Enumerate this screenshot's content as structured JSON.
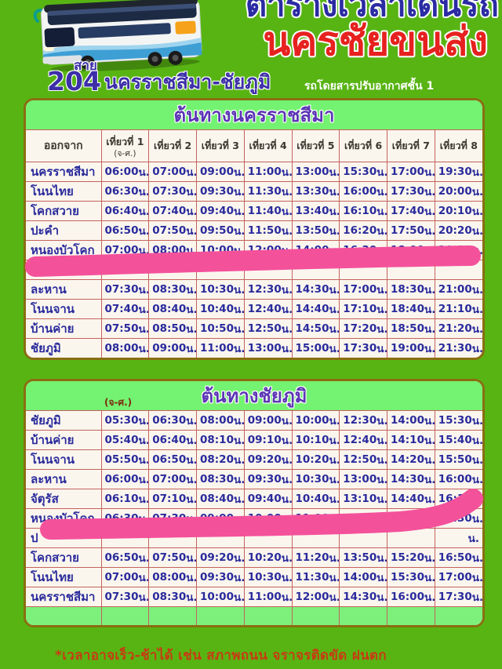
{
  "header": {
    "title_line1": "ตารางเวลาเดินรถ",
    "title_line2": "นครชัยขนส่ง",
    "route_label": "สาย",
    "route_number": "204",
    "route_name": "นครราชสีมา-ชัยภูมิ",
    "bus_note": "รถโดยสารปรับอากาศชั้น 1"
  },
  "icons": {
    "bus": "double-decker-bus"
  },
  "tables": [
    {
      "title": "ต้นทางนครราชสีมา",
      "weekday_note": "(จ-ศ.)",
      "columns": [
        "ออกจาก",
        "เที่ยวที่ 1",
        "เที่ยวที่ 2",
        "เที่ยวที่ 3",
        "เที่ยวที่ 4",
        "เที่ยวที่ 5",
        "เที่ยวที่ 6",
        "เที่ยวที่ 7",
        "เที่ยวที่ 8"
      ],
      "rows": [
        {
          "station": "นครราชสีมา",
          "times": [
            "06:00 น.",
            "07:00 น.",
            "09:00 น.",
            "11:00 น.",
            "13:00 น.",
            "15:30 น.",
            "17:00 น.",
            "19:30 น."
          ]
        },
        {
          "station": "โนนไทย",
          "times": [
            "06:30 น.",
            "07:30 น.",
            "09:30 น.",
            "11:30 น.",
            "13:30 น.",
            "16:00 น.",
            "17:30 น.",
            "20:00 น."
          ]
        },
        {
          "station": "โคกสวาย",
          "times": [
            "06:40 น.",
            "07:40 น.",
            "09:40 น.",
            "11:40 น.",
            "13:40 น.",
            "16:10 น.",
            "17:40 น.",
            "20:10 น."
          ]
        },
        {
          "station": "ปะคำ",
          "times": [
            "06:50 น.",
            "07:50 น.",
            "09:50 น.",
            "11:50 น.",
            "13:50 น.",
            "16:20 น.",
            "17:50 น.",
            "20:20 น."
          ]
        },
        {
          "station": "หนองบัวโคก",
          "times": [
            "07:00 น.",
            "08:00 น.",
            "10:00 น.",
            "12:00 น.",
            "14:00 น.",
            "16:30 น.",
            "18:00 น.",
            "20:30 น."
          ]
        },
        {
          "station": "",
          "times": [
            "",
            "",
            "",
            "",
            "",
            "",
            "",
            ""
          ],
          "highlighted": true
        },
        {
          "station": "ละหาน",
          "times": [
            "07:30 น.",
            "08:30 น.",
            "10:30 น.",
            "12:30 น.",
            "14:30 น.",
            "17:00 น.",
            "18:30 น.",
            "21:00 น."
          ]
        },
        {
          "station": "โนนจาน",
          "times": [
            "07:40 น.",
            "08:40 น.",
            "10:40 น.",
            "12:40 น.",
            "14:40 น.",
            "17:10 น.",
            "18:40 น.",
            "21:10 น."
          ]
        },
        {
          "station": "บ้านค่าย",
          "times": [
            "07:50 น.",
            "08:50 น.",
            "10:50 น.",
            "12:50 น.",
            "14:50 น.",
            "17:20 น.",
            "18:50 น.",
            "21:20 น."
          ]
        },
        {
          "station": "ชัยภูมิ",
          "times": [
            "08:00 น.",
            "09:00 น.",
            "11:00 น.",
            "13:00 น.",
            "15:00 น.",
            "17:30 น.",
            "19:00 น.",
            "21:30 น."
          ]
        }
      ]
    },
    {
      "title": "ต้นทางชัยภูมิ",
      "weekday_note": "(จ-ศ.)",
      "has_footer_row": true,
      "rows": [
        {
          "station": "ชัยภูมิ",
          "times": [
            "05:30 น.",
            "06:30 น.",
            "08:00 น.",
            "09:00 น.",
            "10:00 น.",
            "12:30 น.",
            "14:00 น.",
            "15:30 น."
          ]
        },
        {
          "station": "บ้านค่าย",
          "times": [
            "05:40 น.",
            "06:40 น.",
            "08:10 น.",
            "09:10 น.",
            "10:10 น.",
            "12:40 น.",
            "14:10 น.",
            "15:40 น."
          ]
        },
        {
          "station": "โนนจาน",
          "times": [
            "05:50 น.",
            "06:50 น.",
            "08:20 น.",
            "09:20 น.",
            "10:20 น.",
            "12:50 น.",
            "14:20 น.",
            "15:50 น."
          ]
        },
        {
          "station": "ละหาน",
          "times": [
            "06:00 น.",
            "07:00 น.",
            "08:30 น.",
            "09:30 น.",
            "10:30 น.",
            "13:00 น.",
            "14:30 น.",
            "16:00 น."
          ]
        },
        {
          "station": "จัตุรัส",
          "times": [
            "06:10 น.",
            "07:10 น.",
            "08:40 น.",
            "09:40 น.",
            "10:40 น.",
            "13:10 น.",
            "14:40 น.",
            "16:10 น."
          ]
        },
        {
          "station": "หนองบัวโคก",
          "times": [
            "06:30 น.",
            "07:30 น.",
            "09:00 น.",
            "10:00 น.",
            "11:00 น.",
            "13:30 น.",
            "15:00 น.",
            "16:30 น."
          ]
        },
        {
          "station": "ป",
          "times": [
            "",
            "",
            "",
            "",
            "",
            "",
            "",
            "น."
          ],
          "highlighted": true
        },
        {
          "station": "โคกสวาย",
          "times": [
            "06:50 น.",
            "07:50 น.",
            "09:20 น.",
            "10:20 น.",
            "11:20 น.",
            "13:50 น.",
            "15:20 น.",
            "16:50 น."
          ]
        },
        {
          "station": "โนนไทย",
          "times": [
            "07:00 น.",
            "08:00 น.",
            "09:30 น.",
            "10:30 น.",
            "11:30 น.",
            "14:00 น.",
            "15:30 น.",
            "17:00 น."
          ]
        },
        {
          "station": "นครราชสีมา",
          "times": [
            "07:30 น.",
            "08:30 น.",
            "10:00 น.",
            "11:00 น.",
            "12:00 น.",
            "14:30 น.",
            "16:00 น.",
            "17:30 น."
          ]
        }
      ]
    }
  ],
  "footer": {
    "note": "*เวลาอาจเร็ว-ช้าได้ เช่น สภาพถนน จราจรติดขัด ฝนตก"
  },
  "colors": {
    "page_green": "#58b413",
    "band_green": "#74f271",
    "green_row": "#7df07b",
    "cell_bg": "#faf6ee",
    "grid_line": "#c4625c",
    "table_border": "#8a6e12",
    "navy_text": "#2a2a9c",
    "header_text": "#3a372f",
    "title_blue": "#2b2ba4",
    "title_red": "#e6211f",
    "route_purple": "#3c2fa8",
    "band_title_purple": "#5b35b5",
    "weekday_note_color": "#7d2c10",
    "highlight_pink": "#f4519b",
    "footer_red": "#c63c12"
  }
}
